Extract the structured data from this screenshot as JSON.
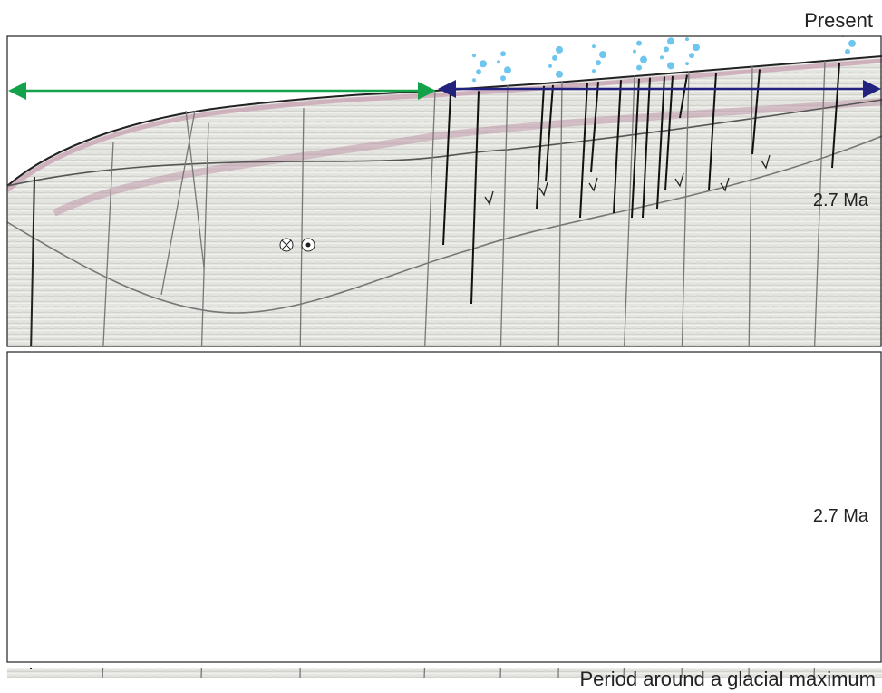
{
  "panels": [
    {
      "label": "Present",
      "horizon_label": "2.7 Ma"
    },
    {
      "label": "Period around a glacial maximum",
      "horizon_label": "2.7 Ma"
    }
  ]
}
